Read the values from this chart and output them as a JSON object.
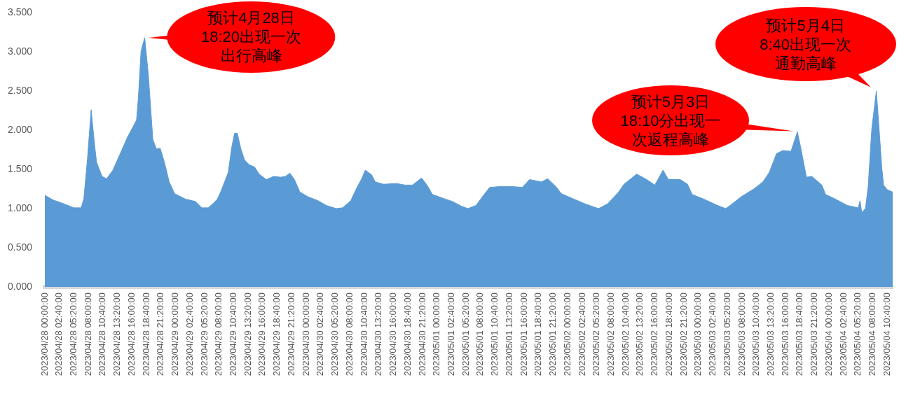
{
  "chart_data": {
    "type": "area",
    "color": "#5b9bd5",
    "x": [
      "2023-04-28T00:00",
      "2023-04-28T01:30",
      "2023-04-28T03:30",
      "2023-04-28T05:20",
      "2023-04-28T06:40",
      "2023-04-28T07:10",
      "2023-04-28T07:50",
      "2023-04-28T08:30",
      "2023-04-28T09:10",
      "2023-04-28T09:30",
      "2023-04-28T10:30",
      "2023-04-28T11:20",
      "2023-04-28T12:30",
      "2023-04-28T13:50",
      "2023-04-28T15:10",
      "2023-04-28T16:10",
      "2023-04-28T16:50",
      "2023-04-28T17:10",
      "2023-04-28T17:40",
      "2023-04-28T18:20",
      "2023-04-28T19:00",
      "2023-04-28T19:50",
      "2023-04-28T20:30",
      "2023-04-28T21:10",
      "2023-04-28T22:00",
      "2023-04-28T22:50",
      "2023-04-28T23:50",
      "2023-04-29T01:50",
      "2023-04-29T03:40",
      "2023-04-29T04:50",
      "2023-04-29T06:00",
      "2023-04-29T06:50",
      "2023-04-29T07:40",
      "2023-04-29T08:20",
      "2023-04-29T09:00",
      "2023-04-29T09:40",
      "2023-04-29T10:20",
      "2023-04-29T10:50",
      "2023-04-29T11:20",
      "2023-04-29T12:00",
      "2023-04-29T12:40",
      "2023-04-29T13:30",
      "2023-04-29T14:30",
      "2023-04-29T15:20",
      "2023-04-29T16:40",
      "2023-04-29T18:00",
      "2023-04-29T19:20",
      "2023-04-29T20:10",
      "2023-04-29T21:00",
      "2023-04-29T21:50",
      "2023-04-29T22:50",
      "2023-04-30T00:20",
      "2023-04-30T02:10",
      "2023-04-30T03:40",
      "2023-04-30T05:30",
      "2023-04-30T06:40",
      "2023-04-30T08:10",
      "2023-04-30T09:10",
      "2023-04-30T10:10",
      "2023-04-30T10:50",
      "2023-04-30T12:00",
      "2023-04-30T12:40",
      "2023-04-30T14:10",
      "2023-04-30T16:30",
      "2023-04-30T18:10",
      "2023-04-30T19:30",
      "2023-04-30T21:10",
      "2023-04-30T22:10",
      "2023-04-30T23:10",
      "2023-05-01T01:10",
      "2023-05-01T02:50",
      "2023-05-01T04:30",
      "2023-05-01T05:40",
      "2023-05-01T07:10",
      "2023-05-01T08:20",
      "2023-05-01T09:40",
      "2023-05-01T11:20",
      "2023-05-01T14:00",
      "2023-05-01T15:40",
      "2023-05-01T17:00",
      "2023-05-01T19:10",
      "2023-05-01T20:20",
      "2023-05-01T21:50",
      "2023-05-01T22:50",
      "2023-05-02T00:50",
      "2023-05-02T03:10",
      "2023-05-02T05:40",
      "2023-05-02T07:20",
      "2023-05-02T09:20",
      "2023-05-02T10:20",
      "2023-05-02T12:40",
      "2023-05-02T14:30",
      "2023-05-02T16:00",
      "2023-05-02T17:30",
      "2023-05-02T18:30",
      "2023-05-02T20:40",
      "2023-05-02T22:00",
      "2023-05-02T22:50",
      "2023-05-03T01:00",
      "2023-05-03T03:30",
      "2023-05-03T05:00",
      "2023-05-03T05:50",
      "2023-05-03T07:50",
      "2023-05-03T10:10",
      "2023-05-03T11:50",
      "2023-05-03T13:00",
      "2023-05-03T14:20",
      "2023-05-03T15:30",
      "2023-05-03T17:00",
      "2023-05-03T18:10",
      "2023-05-03T18:50",
      "2023-05-03T19:50",
      "2023-05-03T20:50",
      "2023-05-03T22:40",
      "2023-05-03T23:20",
      "2023-05-04T01:10",
      "2023-05-04T03:20",
      "2023-05-04T05:20",
      "2023-05-04T05:40",
      "2023-05-04T06:00",
      "2023-05-04T06:40",
      "2023-05-04T07:10",
      "2023-05-04T07:50",
      "2023-05-04T08:40",
      "2023-05-04T09:10",
      "2023-05-04T09:40",
      "2023-05-04T10:00",
      "2023-05-04T10:40",
      "2023-05-04T11:40"
    ],
    "values": [
      1.17,
      1.11,
      1.06,
      1.01,
      1.01,
      1.13,
      1.64,
      2.26,
      1.79,
      1.59,
      1.41,
      1.38,
      1.49,
      1.7,
      1.91,
      2.04,
      2.13,
      2.41,
      3.01,
      3.18,
      2.71,
      1.88,
      1.76,
      1.77,
      1.58,
      1.34,
      1.19,
      1.12,
      1.09,
      1.01,
      1.01,
      1.06,
      1.12,
      1.22,
      1.34,
      1.46,
      1.79,
      1.96,
      1.96,
      1.76,
      1.62,
      1.56,
      1.53,
      1.44,
      1.37,
      1.41,
      1.4,
      1.41,
      1.45,
      1.37,
      1.21,
      1.15,
      1.1,
      1.04,
      1.0,
      1.01,
      1.1,
      1.25,
      1.38,
      1.49,
      1.43,
      1.34,
      1.31,
      1.32,
      1.3,
      1.3,
      1.39,
      1.3,
      1.18,
      1.13,
      1.09,
      1.03,
      1.0,
      1.04,
      1.15,
      1.27,
      1.28,
      1.28,
      1.27,
      1.37,
      1.34,
      1.38,
      1.28,
      1.19,
      1.13,
      1.06,
      1.0,
      1.06,
      1.21,
      1.31,
      1.44,
      1.37,
      1.3,
      1.49,
      1.37,
      1.37,
      1.31,
      1.18,
      1.12,
      1.04,
      1.0,
      1.04,
      1.15,
      1.25,
      1.34,
      1.46,
      1.7,
      1.74,
      1.73,
      1.98,
      1.76,
      1.4,
      1.41,
      1.3,
      1.18,
      1.12,
      1.04,
      1.01,
      1.1,
      0.95,
      1.0,
      1.28,
      2.02,
      2.5,
      2.02,
      1.52,
      1.3,
      1.24,
      1.21
    ],
    "xlim": [
      "2023-04-28T00:00",
      "2023-05-04T11:40"
    ],
    "xticks": [
      {
        "value": "2023-04-28T00:00",
        "label": "2023/04/28 00:00:00"
      },
      {
        "value": "2023-04-28T02:40",
        "label": "2023/04/28 02:40:00"
      },
      {
        "value": "2023-04-28T05:20",
        "label": "2023/04/28 05:20:00"
      },
      {
        "value": "2023-04-28T08:00",
        "label": "2023/04/28 08:00:00"
      },
      {
        "value": "2023-04-28T10:40",
        "label": "2023/04/28 10:40:00"
      },
      {
        "value": "2023-04-28T13:20",
        "label": "2023/04/28 13:20:00"
      },
      {
        "value": "2023-04-28T16:00",
        "label": "2023/04/28 16:00:00"
      },
      {
        "value": "2023-04-28T18:40",
        "label": "2023/04/28 18:40:00"
      },
      {
        "value": "2023-04-28T21:20",
        "label": "2023/04/28 21:20:00"
      },
      {
        "value": "2023-04-29T00:00",
        "label": "2023/04/29 00:00:00"
      },
      {
        "value": "2023-04-29T02:40",
        "label": "2023/04/29 02:40:00"
      },
      {
        "value": "2023-04-29T05:20",
        "label": "2023/04/29 05:20:00"
      },
      {
        "value": "2023-04-29T08:00",
        "label": "2023/04/29 08:00:00"
      },
      {
        "value": "2023-04-29T10:40",
        "label": "2023/04/29 10:40:00"
      },
      {
        "value": "2023-04-29T13:20",
        "label": "2023/04/29 13:20:00"
      },
      {
        "value": "2023-04-29T16:00",
        "label": "2023/04/29 16:00:00"
      },
      {
        "value": "2023-04-29T18:40",
        "label": "2023/04/29 18:40:00"
      },
      {
        "value": "2023-04-29T21:20",
        "label": "2023/04/29 21:20:00"
      },
      {
        "value": "2023-04-30T00:00",
        "label": "2023/04/30 00:00:00"
      },
      {
        "value": "2023-04-30T02:40",
        "label": "2023/04/30 02:40:00"
      },
      {
        "value": "2023-04-30T05:20",
        "label": "2023/04/30 05:20:00"
      },
      {
        "value": "2023-04-30T08:00",
        "label": "2023/04/30 08:00:00"
      },
      {
        "value": "2023-04-30T10:40",
        "label": "2023/04/30 10:40:00"
      },
      {
        "value": "2023-04-30T13:20",
        "label": "2023/04/30 13:20:00"
      },
      {
        "value": "2023-04-30T16:00",
        "label": "2023/04/30 16:00:00"
      },
      {
        "value": "2023-04-30T18:40",
        "label": "2023/04/30 18:40:00"
      },
      {
        "value": "2023-04-30T21:20",
        "label": "2023/04/30 21:20:00"
      },
      {
        "value": "2023-05-01T00:00",
        "label": "2023/05/01 00:00:00"
      },
      {
        "value": "2023-05-01T02:40",
        "label": "2023/05/01 02:40:00"
      },
      {
        "value": "2023-05-01T05:20",
        "label": "2023/05/01 05:20:00"
      },
      {
        "value": "2023-05-01T08:00",
        "label": "2023/05/01 08:00:00"
      },
      {
        "value": "2023-05-01T10:40",
        "label": "2023/05/01 10:40:00"
      },
      {
        "value": "2023-05-01T13:20",
        "label": "2023/05/01 13:20:00"
      },
      {
        "value": "2023-05-01T16:00",
        "label": "2023/05/01 16:00:00"
      },
      {
        "value": "2023-05-01T18:40",
        "label": "2023/05/01 18:40:00"
      },
      {
        "value": "2023-05-01T21:20",
        "label": "2023/05/01 21:20:00"
      },
      {
        "value": "2023-05-02T00:00",
        "label": "2023/05/02 00:00:00"
      },
      {
        "value": "2023-05-02T02:40",
        "label": "2023/05/02 02:40:00"
      },
      {
        "value": "2023-05-02T05:20",
        "label": "2023/05/02 05:20:00"
      },
      {
        "value": "2023-05-02T08:00",
        "label": "2023/05/02 08:00:00"
      },
      {
        "value": "2023-05-02T10:40",
        "label": "2023/05/02 10:40:00"
      },
      {
        "value": "2023-05-02T13:20",
        "label": "2023/05/02 13:20:00"
      },
      {
        "value": "2023-05-02T16:00",
        "label": "2023/05/02 16:00:00"
      },
      {
        "value": "2023-05-02T18:40",
        "label": "2023/05/02 18:40:00"
      },
      {
        "value": "2023-05-02T21:20",
        "label": "2023/05/02 21:20:00"
      },
      {
        "value": "2023-05-03T00:00",
        "label": "2023/05/03 00:00:00"
      },
      {
        "value": "2023-05-03T02:40",
        "label": "2023/05/03 02:40:00"
      },
      {
        "value": "2023-05-03T05:20",
        "label": "2023/05/03 05:20:00"
      },
      {
        "value": "2023-05-03T08:00",
        "label": "2023/05/03 08:00:00"
      },
      {
        "value": "2023-05-03T10:40",
        "label": "2023/05/03 10:40:00"
      },
      {
        "value": "2023-05-03T13:20",
        "label": "2023/05/03 13:20:00"
      },
      {
        "value": "2023-05-03T16:00",
        "label": "2023/05/03 16:00:00"
      },
      {
        "value": "2023-05-03T18:40",
        "label": "2023/05/03 18:40:00"
      },
      {
        "value": "2023-05-03T21:20",
        "label": "2023/05/03 21:20:00"
      },
      {
        "value": "2023-05-04T00:00",
        "label": "2023/05/04 00:00:00"
      },
      {
        "value": "2023-05-04T02:40",
        "label": "2023/05/04 02:40:00"
      },
      {
        "value": "2023-05-04T05:20",
        "label": "2023/05/04 05:20:00"
      },
      {
        "value": "2023-05-04T08:00",
        "label": "2023/05/04 08:00:00"
      },
      {
        "value": "2023-05-04T10:40",
        "label": "2023/05/04 10:40:00"
      }
    ],
    "ylim": [
      0,
      3.5
    ],
    "yticks": [
      {
        "value": 0,
        "label": "0.000"
      },
      {
        "value": 0.5,
        "label": "0.500"
      },
      {
        "value": 1,
        "label": "1.000"
      },
      {
        "value": 1.5,
        "label": "1.500"
      },
      {
        "value": 2,
        "label": "2.000"
      },
      {
        "value": 2.5,
        "label": "2.500"
      },
      {
        "value": 3,
        "label": "3.000"
      },
      {
        "value": 3.5,
        "label": "3.500"
      }
    ],
    "annotations": [
      {
        "text": "预计4月28日18:20出现一次出行高峰",
        "x": "2023-04-28T18:20",
        "y": 3.18
      },
      {
        "text": "预计5月3日18:10分出现一次返程高峰",
        "x": "2023-05-03T18:10",
        "y": 1.98
      },
      {
        "text": "预计5月4日8:40出现一次通勤高峰",
        "x": "2023-05-04T08:40",
        "y": 2.5
      }
    ]
  }
}
